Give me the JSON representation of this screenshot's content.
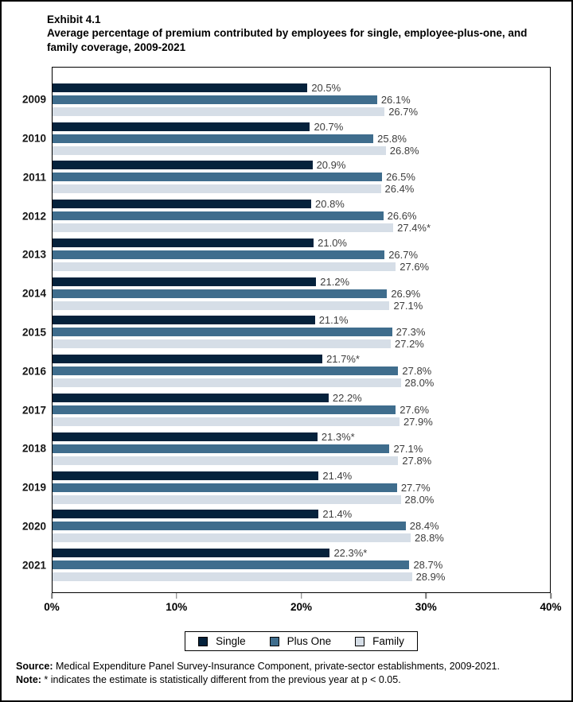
{
  "title": {
    "exhibit": "Exhibit 4.1",
    "text": "Average percentage of premium contributed by employees for single, employee-plus-one, and family coverage, 2009-2021"
  },
  "chart_data": {
    "type": "bar",
    "orientation": "horizontal",
    "title": "Average percentage of premium contributed by employees for single, employee-plus-one, and family coverage, 2009-2021",
    "categories": [
      "2009",
      "2010",
      "2011",
      "2012",
      "2013",
      "2014",
      "2015",
      "2016",
      "2017",
      "2018",
      "2019",
      "2020",
      "2021"
    ],
    "series": [
      {
        "name": "Single",
        "color": "#05223c",
        "values": [
          20.5,
          20.7,
          20.9,
          20.8,
          21.0,
          21.2,
          21.1,
          21.7,
          22.2,
          21.3,
          21.4,
          21.4,
          22.3
        ],
        "labels": [
          "20.5%",
          "20.7%",
          "20.9%",
          "20.8%",
          "21.0%",
          "21.2%",
          "21.1%",
          "21.7%*",
          "22.2%",
          "21.3%*",
          "21.4%",
          "21.4%",
          "22.3%*"
        ]
      },
      {
        "name": "Plus One",
        "color": "#3f6d8d",
        "values": [
          26.1,
          25.8,
          26.5,
          26.6,
          26.7,
          26.9,
          27.3,
          27.8,
          27.6,
          27.1,
          27.7,
          28.4,
          28.7
        ],
        "labels": [
          "26.1%",
          "25.8%",
          "26.5%",
          "26.6%",
          "26.7%",
          "26.9%",
          "27.3%",
          "27.8%",
          "27.6%",
          "27.1%",
          "27.7%",
          "28.4%",
          "28.7%"
        ]
      },
      {
        "name": "Family",
        "color": "#d6dee7",
        "values": [
          26.7,
          26.8,
          26.4,
          27.4,
          27.6,
          27.1,
          27.2,
          28.0,
          27.9,
          27.8,
          28.0,
          28.8,
          28.9
        ],
        "labels": [
          "26.7%",
          "26.8%",
          "26.4%",
          "27.4%*",
          "27.6%",
          "27.1%",
          "27.2%",
          "28.0%",
          "27.9%",
          "27.8%",
          "28.0%",
          "28.8%",
          "28.9%"
        ]
      }
    ],
    "xlim": [
      0,
      40
    ],
    "x_ticks": [
      "0%",
      "10%",
      "20%",
      "30%",
      "40%"
    ],
    "grid": false,
    "legend_position": "bottom"
  },
  "legend": {
    "items": [
      {
        "label": "Single",
        "color": "#05223c"
      },
      {
        "label": "Plus One",
        "color": "#3f6d8d"
      },
      {
        "label": "Family",
        "color": "#d6dee7"
      }
    ]
  },
  "footer": {
    "source_label": "Source:",
    "source_text": " Medical Expenditure Panel Survey-Insurance Component, private-sector establishments, 2009-2021.",
    "note_label": "Note:",
    "note_text": " * indicates the estimate is statistically different from the previous year at p < 0.05."
  }
}
